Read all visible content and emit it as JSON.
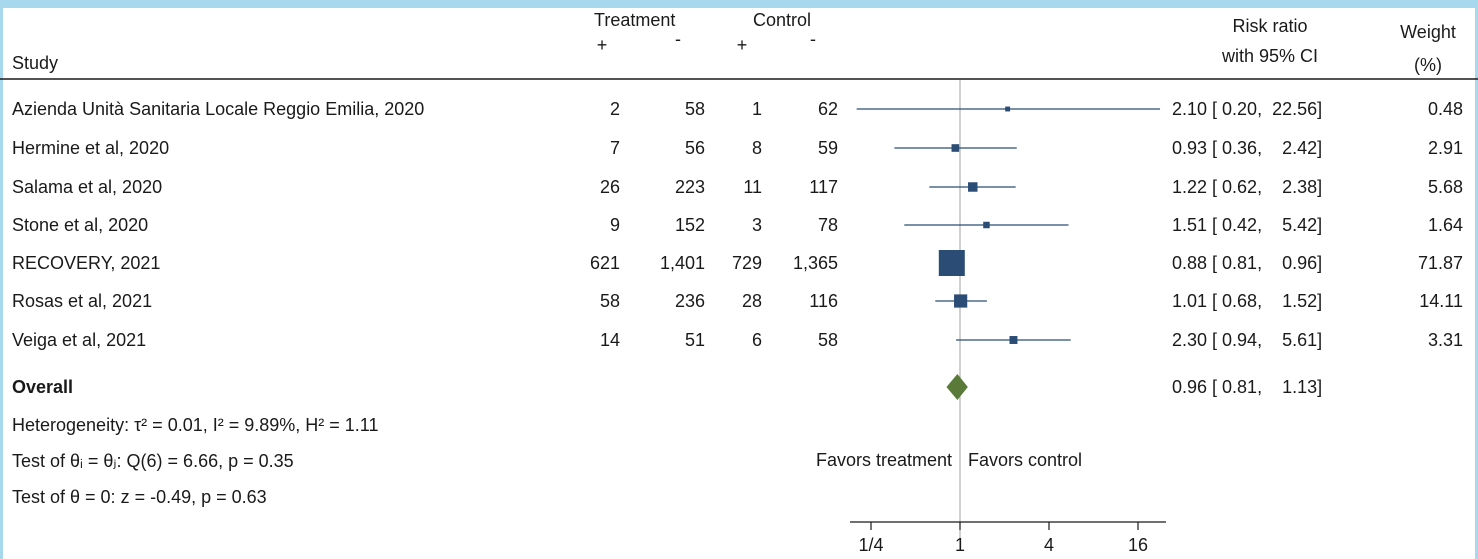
{
  "chart_data": {
    "type": "forest",
    "header": {
      "study": "Study",
      "treatment": "Treatment",
      "control": "Control",
      "plus": "+",
      "minus": "-",
      "rr_line1": "Risk ratio",
      "rr_line2": "with 95% CI",
      "weight_line1": "Weight",
      "weight_line2": "(%)"
    },
    "studies": [
      {
        "name": "Azienda Unità Sanitaria Locale Reggio Emilia, 2020",
        "tp": "2",
        "tm": "58",
        "cp": "1",
        "cm": "62",
        "rr": 2.1,
        "lo": 0.2,
        "hi": 22.56,
        "ci_text": "2.10 [ 0.20,  22.56]",
        "weight": "0.48"
      },
      {
        "name": "Hermine et al, 2020",
        "tp": "7",
        "tm": "56",
        "cp": "8",
        "cm": "59",
        "rr": 0.93,
        "lo": 0.36,
        "hi": 2.42,
        "ci_text": "0.93 [ 0.36,    2.42]",
        "weight": "2.91"
      },
      {
        "name": "Salama et al, 2020",
        "tp": "26",
        "tm": "223",
        "cp": "11",
        "cm": "117",
        "rr": 1.22,
        "lo": 0.62,
        "hi": 2.38,
        "ci_text": "1.22 [ 0.62,    2.38]",
        "weight": "5.68"
      },
      {
        "name": "Stone et al, 2020",
        "tp": "9",
        "tm": "152",
        "cp": "3",
        "cm": "78",
        "rr": 1.51,
        "lo": 0.42,
        "hi": 5.42,
        "ci_text": "1.51 [ 0.42,    5.42]",
        "weight": "1.64"
      },
      {
        "name": "RECOVERY, 2021",
        "tp": "621",
        "tm": "1,401",
        "cp": "729",
        "cm": "1,365",
        "rr": 0.88,
        "lo": 0.81,
        "hi": 0.96,
        "ci_text": "0.88 [ 0.81,    0.96]",
        "weight": "71.87"
      },
      {
        "name": "Rosas et al, 2021",
        "tp": "58",
        "tm": "236",
        "cp": "28",
        "cm": "116",
        "rr": 1.01,
        "lo": 0.68,
        "hi": 1.52,
        "ci_text": "1.01 [ 0.68,    1.52]",
        "weight": "14.11"
      },
      {
        "name": "Veiga et al, 2021",
        "tp": "14",
        "tm": "51",
        "cp": "6",
        "cm": "58",
        "rr": 2.3,
        "lo": 0.94,
        "hi": 5.61,
        "ci_text": "2.30 [ 0.94,    5.61]",
        "weight": "3.31"
      }
    ],
    "overall": {
      "label": "Overall",
      "rr": 0.96,
      "lo": 0.81,
      "hi": 1.13,
      "ci_text": "0.96 [ 0.81,    1.13]"
    },
    "heterogeneity_text": "Heterogeneity: τ² = 0.01, I² = 9.89%, H² = 1.11",
    "test_theta_text": "Test of θᵢ = θⱼ: Q(6) = 6.66, p = 0.35",
    "test_zero_text": "Test of θ = 0: z = -0.49, p = 0.63",
    "favors_treatment": "Favors treatment",
    "favors_control": "Favors control",
    "x_scale": "log2",
    "xlim": [
      0.2,
      22.56
    ],
    "x_ticks": [
      0.25,
      1,
      4,
      16
    ],
    "x_tick_labels": [
      "1/4",
      "1",
      "4",
      "16"
    ],
    "colors": {
      "marker": "#2b4c74",
      "ci_line": "#2b4c74",
      "diamond": "#5a7a3a",
      "ref_line": "#a0a0a0",
      "frame": "#a8d8ee"
    }
  }
}
